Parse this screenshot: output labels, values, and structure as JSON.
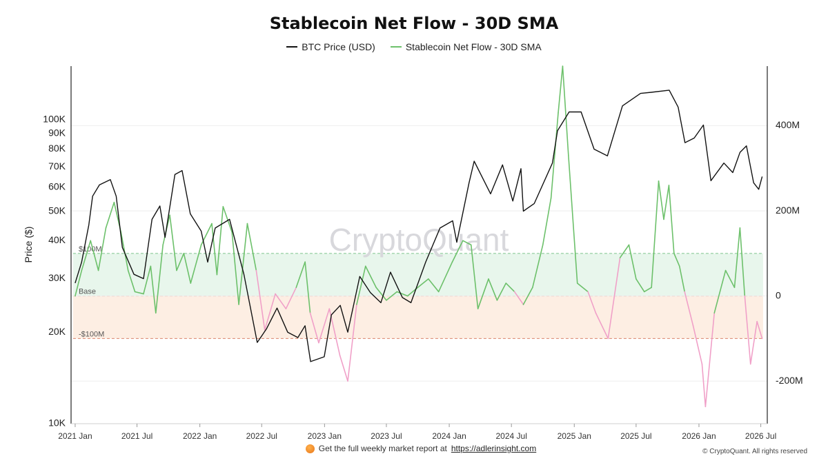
{
  "chart_data": {
    "type": "line",
    "title": "Stablecoin Net Flow - 30D SMA",
    "legend_position": "top-center",
    "series": [
      {
        "name": "BTC Price (USD)",
        "color": "#111111",
        "axis": "left",
        "points": [
          [
            "2021-01-01",
            29000
          ],
          [
            "2021-01-20",
            34000
          ],
          [
            "2021-02-10",
            45000
          ],
          [
            "2021-02-21",
            56000
          ],
          [
            "2021-03-13",
            61000
          ],
          [
            "2021-04-14",
            63500
          ],
          [
            "2021-05-01",
            56000
          ],
          [
            "2021-05-19",
            38000
          ],
          [
            "2021-06-22",
            31000
          ],
          [
            "2021-07-20",
            30000
          ],
          [
            "2021-08-14",
            47000
          ],
          [
            "2021-09-06",
            52000
          ],
          [
            "2021-09-21",
            41000
          ],
          [
            "2021-10-20",
            66000
          ],
          [
            "2021-11-10",
            68000
          ],
          [
            "2021-12-04",
            49000
          ],
          [
            "2022-01-05",
            43000
          ],
          [
            "2022-01-24",
            34000
          ],
          [
            "2022-02-15",
            44000
          ],
          [
            "2022-03-29",
            47000
          ],
          [
            "2022-05-10",
            31000
          ],
          [
            "2022-06-18",
            18500
          ],
          [
            "2022-07-15",
            20500
          ],
          [
            "2022-08-15",
            24000
          ],
          [
            "2022-09-15",
            20000
          ],
          [
            "2022-10-15",
            19200
          ],
          [
            "2022-11-05",
            21000
          ],
          [
            "2022-11-21",
            16000
          ],
          [
            "2022-12-31",
            16600
          ],
          [
            "2023-01-21",
            22800
          ],
          [
            "2023-02-16",
            24500
          ],
          [
            "2023-03-10",
            20000
          ],
          [
            "2023-04-14",
            30500
          ],
          [
            "2023-05-15",
            27000
          ],
          [
            "2023-06-15",
            25000
          ],
          [
            "2023-07-13",
            31500
          ],
          [
            "2023-08-17",
            26000
          ],
          [
            "2023-09-11",
            25000
          ],
          [
            "2023-10-24",
            34000
          ],
          [
            "2023-12-05",
            44000
          ],
          [
            "2024-01-11",
            46500
          ],
          [
            "2024-01-23",
            39500
          ],
          [
            "2024-02-28",
            62000
          ],
          [
            "2024-03-14",
            73000
          ],
          [
            "2024-05-01",
            57000
          ],
          [
            "2024-06-05",
            71000
          ],
          [
            "2024-07-05",
            54000
          ],
          [
            "2024-07-29",
            69000
          ],
          [
            "2024-08-05",
            50000
          ],
          [
            "2024-09-06",
            53000
          ],
          [
            "2024-10-29",
            72000
          ],
          [
            "2024-11-13",
            92000
          ],
          [
            "2024-12-17",
            106000
          ],
          [
            "2025-01-21",
            106000
          ],
          [
            "2025-02-28",
            80000
          ],
          [
            "2025-04-08",
            76000
          ],
          [
            "2025-05-22",
            111000
          ],
          [
            "2025-07-14",
            122000
          ],
          [
            "2025-08-14",
            123000
          ],
          [
            "2025-10-06",
            125000
          ],
          [
            "2025-11-01",
            110000
          ],
          [
            "2025-11-21",
            84000
          ],
          [
            "2025-12-18",
            87000
          ],
          [
            "2026-01-14",
            96000
          ],
          [
            "2026-02-05",
            63000
          ],
          [
            "2026-03-15",
            72000
          ],
          [
            "2026-04-10",
            67000
          ],
          [
            "2026-05-01",
            78000
          ],
          [
            "2026-05-20",
            82000
          ],
          [
            "2026-06-10",
            62000
          ],
          [
            "2026-06-25",
            59000
          ],
          [
            "2026-07-05",
            65000
          ]
        ]
      },
      {
        "name": "Stablecoin Net Flow - 30D SMA",
        "color_positive": "#6cc06a",
        "color_negative": "#f0a0c8",
        "axis": "right",
        "points": [
          [
            "2021-01-01",
            0
          ],
          [
            "2021-01-20",
            60000000
          ],
          [
            "2021-02-15",
            130000000
          ],
          [
            "2021-03-10",
            60000000
          ],
          [
            "2021-04-01",
            160000000
          ],
          [
            "2021-04-25",
            220000000
          ],
          [
            "2021-05-15",
            150000000
          ],
          [
            "2021-06-05",
            60000000
          ],
          [
            "2021-06-25",
            10000000
          ],
          [
            "2021-07-20",
            5000000
          ],
          [
            "2021-08-10",
            70000000
          ],
          [
            "2021-08-25",
            -40000000
          ],
          [
            "2021-09-15",
            120000000
          ],
          [
            "2021-10-05",
            190000000
          ],
          [
            "2021-10-25",
            60000000
          ],
          [
            "2021-11-15",
            100000000
          ],
          [
            "2021-12-05",
            30000000
          ],
          [
            "2022-01-05",
            120000000
          ],
          [
            "2022-02-05",
            170000000
          ],
          [
            "2022-02-20",
            50000000
          ],
          [
            "2022-03-10",
            210000000
          ],
          [
            "2022-04-05",
            150000000
          ],
          [
            "2022-04-25",
            -20000000
          ],
          [
            "2022-05-20",
            170000000
          ],
          [
            "2022-06-15",
            60000000
          ],
          [
            "2022-07-10",
            -80000000
          ],
          [
            "2022-08-10",
            5000000
          ],
          [
            "2022-09-10",
            -30000000
          ],
          [
            "2022-10-10",
            20000000
          ],
          [
            "2022-11-05",
            80000000
          ],
          [
            "2022-11-20",
            -40000000
          ],
          [
            "2022-12-15",
            -110000000
          ],
          [
            "2023-01-15",
            -30000000
          ],
          [
            "2023-02-15",
            -140000000
          ],
          [
            "2023-03-10",
            -200000000
          ],
          [
            "2023-04-05",
            -20000000
          ],
          [
            "2023-05-01",
            70000000
          ],
          [
            "2023-06-01",
            20000000
          ],
          [
            "2023-07-01",
            -10000000
          ],
          [
            "2023-08-01",
            10000000
          ],
          [
            "2023-09-01",
            0
          ],
          [
            "2023-10-01",
            20000000
          ],
          [
            "2023-11-01",
            40000000
          ],
          [
            "2023-12-01",
            10000000
          ],
          [
            "2024-01-10",
            80000000
          ],
          [
            "2024-02-10",
            130000000
          ],
          [
            "2024-03-05",
            120000000
          ],
          [
            "2024-03-25",
            -30000000
          ],
          [
            "2024-04-25",
            40000000
          ],
          [
            "2024-05-20",
            -10000000
          ],
          [
            "2024-06-15",
            30000000
          ],
          [
            "2024-07-10",
            10000000
          ],
          [
            "2024-08-05",
            -20000000
          ],
          [
            "2024-09-01",
            20000000
          ],
          [
            "2024-10-01",
            120000000
          ],
          [
            "2024-10-25",
            230000000
          ],
          [
            "2024-11-15",
            430000000
          ],
          [
            "2024-11-28",
            540000000
          ],
          [
            "2024-12-15",
            330000000
          ],
          [
            "2025-01-10",
            30000000
          ],
          [
            "2025-02-10",
            10000000
          ],
          [
            "2025-03-05",
            -40000000
          ],
          [
            "2025-04-10",
            -100000000
          ],
          [
            "2025-05-15",
            90000000
          ],
          [
            "2025-06-10",
            120000000
          ],
          [
            "2025-07-01",
            40000000
          ],
          [
            "2025-07-25",
            10000000
          ],
          [
            "2025-08-15",
            20000000
          ],
          [
            "2025-09-05",
            270000000
          ],
          [
            "2025-09-20",
            180000000
          ],
          [
            "2025-10-05",
            260000000
          ],
          [
            "2025-10-20",
            100000000
          ],
          [
            "2025-11-05",
            70000000
          ],
          [
            "2025-11-20",
            10000000
          ],
          [
            "2025-12-15",
            -70000000
          ],
          [
            "2026-01-10",
            -160000000
          ],
          [
            "2026-01-20",
            -260000000
          ],
          [
            "2026-02-15",
            -40000000
          ],
          [
            "2026-03-20",
            60000000
          ],
          [
            "2026-04-15",
            20000000
          ],
          [
            "2026-05-01",
            160000000
          ],
          [
            "2026-05-15",
            0
          ],
          [
            "2026-06-01",
            -160000000
          ],
          [
            "2026-06-20",
            -60000000
          ],
          [
            "2026-07-05",
            -100000000
          ]
        ]
      }
    ],
    "y_left": {
      "label": "Price ($)",
      "scale": "log",
      "range": [
        10000,
        150000
      ],
      "ticks": [
        10000,
        20000,
        30000,
        40000,
        50000,
        60000,
        70000,
        80000,
        90000,
        100000
      ],
      "tick_labels": [
        "10K",
        "20K",
        "30K",
        "40K",
        "50K",
        "60K",
        "70K",
        "80K",
        "90K",
        "100K"
      ]
    },
    "y_right": {
      "scale": "linear",
      "range": [
        -300000000,
        540000000
      ],
      "ticks": [
        -200000000,
        0,
        200000000,
        400000000
      ],
      "tick_labels": [
        "-200M",
        "0",
        "200M",
        "400M"
      ]
    },
    "x_axis": {
      "range": [
        "2020-12-20",
        "2026-07-20"
      ],
      "ticks": [
        "2021-01-01",
        "2021-07-01",
        "2022-01-01",
        "2022-07-01",
        "2023-01-01",
        "2023-07-01",
        "2024-01-01",
        "2024-07-01",
        "2025-01-01",
        "2025-07-01",
        "2026-01-01",
        "2026-07-01"
      ],
      "tick_labels": [
        "2021 Jan",
        "2021 Jul",
        "2022 Jan",
        "2022 Jul",
        "2023 Jan",
        "2023 Jul",
        "2024 Jan",
        "2024 Jul",
        "2025 Jan",
        "2025 Jul",
        "2026 Jan",
        "2026 Jul"
      ]
    },
    "bands": [
      {
        "name": "positive-band",
        "from": 0,
        "to": 100000000,
        "color": "#e8f6ec",
        "line_color": "#7cc38a"
      },
      {
        "name": "negative-band",
        "from": -100000000,
        "to": 0,
        "color": "#fdeee3",
        "line_color": "#d9826a"
      }
    ],
    "band_labels": {
      "upper": "$100M",
      "base": "Base",
      "lower": "-$100M"
    },
    "grid": true
  },
  "watermark": "CryptoQuant",
  "footer": {
    "text": "Get the full weekly market report at",
    "link": "https://adlerinsight.com",
    "copyright": "© CryptoQuant. All rights reserved"
  },
  "icons": {
    "footer_icon": "orange-coin-icon"
  }
}
